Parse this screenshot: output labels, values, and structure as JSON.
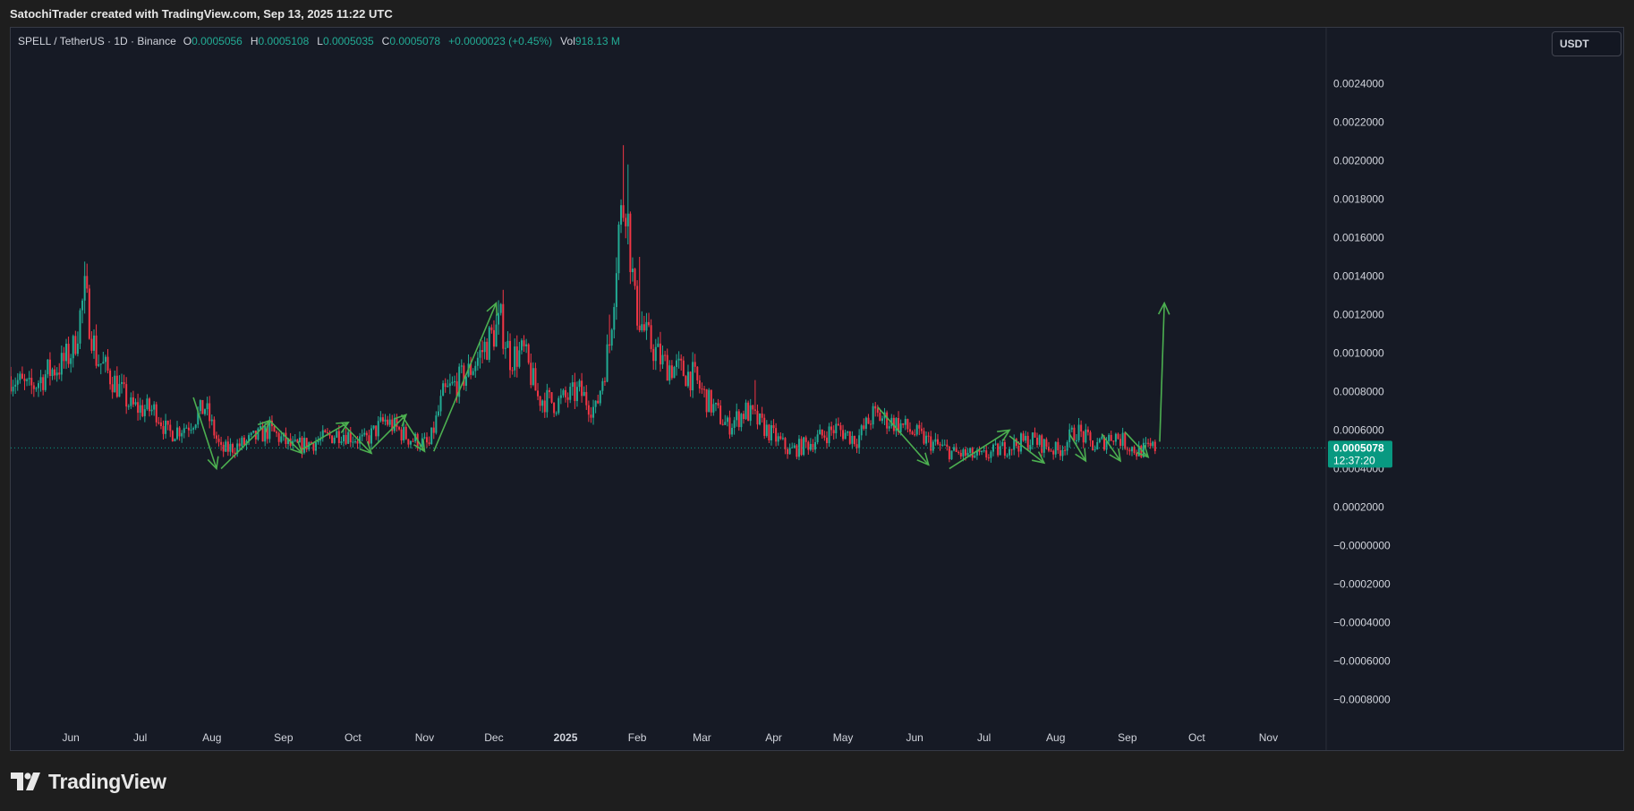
{
  "header": {
    "attribution": "SatochiTrader created with TradingView.com, Sep 13, 2025 11:22 UTC"
  },
  "legend": {
    "symbol": "SPELL / TetherUS · 1D · Binance",
    "open_label": "O",
    "open": "0.0005056",
    "high_label": "H",
    "high": "0.0005108",
    "low_label": "L",
    "low": "0.0005035",
    "close_label": "C",
    "close": "0.0005078",
    "change": "+0.0000023 (+0.45%)",
    "vol_label": "Vol",
    "vol": "918.13 M"
  },
  "price_scale": {
    "unit_button": "USDT",
    "current_price": "0.0005078",
    "countdown": "12:37:20"
  },
  "footer": {
    "brand": "TradingView"
  },
  "colors": {
    "up": "#22ab94",
    "down": "#f23645",
    "annotation": "#4caf50",
    "background": "#161a25",
    "label_bg": "#089981"
  },
  "chart_data": {
    "type": "candlestick",
    "interval": "1D",
    "y_axis": {
      "ticks": [
        "0.0024000",
        "0.0022000",
        "0.0020000",
        "0.0018000",
        "0.0016000",
        "0.0014000",
        "0.0012000",
        "0.0010000",
        "0.0008000",
        "0.0006000",
        "0.0004000",
        "0.0002000",
        "−0.0000000",
        "−0.0002000",
        "−0.0004000",
        "−0.0006000",
        "−0.0008000"
      ],
      "tick_values": [
        0.0024,
        0.0022,
        0.002,
        0.0018,
        0.0016,
        0.0014,
        0.0012,
        0.001,
        0.0008,
        0.0006,
        0.0004,
        0.0002,
        0,
        -0.0002,
        -0.0004,
        -0.0006,
        -0.0008
      ],
      "range": [
        -0.00089,
        0.00269
      ],
      "position": "right"
    },
    "x_axis": {
      "range": [
        "2024-05-06",
        "2025-11-26"
      ],
      "labels": [
        {
          "date": "2024-06-01",
          "text": "Jun"
        },
        {
          "date": "2024-07-01",
          "text": "Jul"
        },
        {
          "date": "2024-08-01",
          "text": "Aug"
        },
        {
          "date": "2024-09-01",
          "text": "Sep"
        },
        {
          "date": "2024-10-01",
          "text": "Oct"
        },
        {
          "date": "2024-11-01",
          "text": "Nov"
        },
        {
          "date": "2024-12-01",
          "text": "Dec"
        },
        {
          "date": "2025-01-01",
          "text": "2025",
          "bold": true
        },
        {
          "date": "2025-02-01",
          "text": "Feb"
        },
        {
          "date": "2025-03-01",
          "text": "Mar"
        },
        {
          "date": "2025-04-01",
          "text": "Apr"
        },
        {
          "date": "2025-05-01",
          "text": "May"
        },
        {
          "date": "2025-06-01",
          "text": "Jun"
        },
        {
          "date": "2025-07-01",
          "text": "Jul"
        },
        {
          "date": "2025-08-01",
          "text": "Aug"
        },
        {
          "date": "2025-09-01",
          "text": "Sep"
        },
        {
          "date": "2025-10-01",
          "text": "Oct"
        },
        {
          "date": "2025-11-01",
          "text": "Nov"
        }
      ]
    },
    "close_series": [
      [
        "2024-05-06",
        0.00088
      ],
      [
        "2024-05-14",
        0.00081
      ],
      [
        "2024-05-22",
        0.0009
      ],
      [
        "2024-05-28",
        0.00094
      ],
      [
        "2024-06-02",
        0.00102
      ],
      [
        "2024-06-07",
        0.00131
      ],
      [
        "2024-06-12",
        0.00098
      ],
      [
        "2024-06-20",
        0.00085
      ],
      [
        "2024-06-27",
        0.00072
      ],
      [
        "2024-07-08",
        0.0007
      ],
      [
        "2024-07-13",
        0.00058
      ],
      [
        "2024-07-22",
        0.00063
      ],
      [
        "2024-07-29",
        0.00072
      ],
      [
        "2024-08-05",
        0.00049
      ],
      [
        "2024-08-15",
        0.00053
      ],
      [
        "2024-08-26",
        0.0006
      ],
      [
        "2024-09-05",
        0.00051
      ],
      [
        "2024-09-15",
        0.00054
      ],
      [
        "2024-09-26",
        0.00059
      ],
      [
        "2024-10-06",
        0.00054
      ],
      [
        "2024-10-15",
        0.00065
      ],
      [
        "2024-10-25",
        0.00056
      ],
      [
        "2024-11-03",
        0.00052
      ],
      [
        "2024-11-09",
        0.00078
      ],
      [
        "2024-11-20",
        0.0009
      ],
      [
        "2024-11-28",
        0.00105
      ],
      [
        "2024-12-04",
        0.00116
      ],
      [
        "2024-12-08",
        0.00098
      ],
      [
        "2024-12-14",
        0.001
      ],
      [
        "2024-12-20",
        0.00077
      ],
      [
        "2024-12-28",
        0.00074
      ],
      [
        "2025-01-07",
        0.0008
      ],
      [
        "2025-01-14",
        0.0007
      ],
      [
        "2025-01-20",
        0.00105
      ],
      [
        "2025-01-24",
        0.00165
      ],
      [
        "2025-01-27",
        0.00182
      ],
      [
        "2025-01-31",
        0.00125
      ],
      [
        "2025-02-05",
        0.00108
      ],
      [
        "2025-02-12",
        0.00095
      ],
      [
        "2025-02-25",
        0.00088
      ],
      [
        "2025-03-03",
        0.00076
      ],
      [
        "2025-03-12",
        0.00062
      ],
      [
        "2025-03-20",
        0.0007
      ],
      [
        "2025-03-31",
        0.00058
      ],
      [
        "2025-04-08",
        0.00049
      ],
      [
        "2025-04-16",
        0.00053
      ],
      [
        "2025-04-28",
        0.00061
      ],
      [
        "2025-05-07",
        0.00055
      ],
      [
        "2025-05-14",
        0.00068
      ],
      [
        "2025-05-27",
        0.00062
      ],
      [
        "2025-06-07",
        0.00054
      ],
      [
        "2025-06-18",
        0.00048
      ],
      [
        "2025-06-30",
        0.00046
      ],
      [
        "2025-07-12",
        0.00052
      ],
      [
        "2025-07-22",
        0.00055
      ],
      [
        "2025-08-02",
        0.00049
      ],
      [
        "2025-08-10",
        0.0006
      ],
      [
        "2025-08-18",
        0.00051
      ],
      [
        "2025-08-26",
        0.00058
      ],
      [
        "2025-09-05",
        0.00049
      ],
      [
        "2025-09-13",
        0.00051
      ]
    ],
    "annotations": [
      {
        "type": "arrow",
        "from": [
          "2024-07-24",
          0.00077
        ],
        "to": [
          "2024-08-03",
          0.0004
        ]
      },
      {
        "type": "arrow",
        "from": [
          "2024-08-05",
          0.0004
        ],
        "to": [
          "2024-08-26",
          0.00065
        ]
      },
      {
        "type": "arrow",
        "from": [
          "2024-08-26",
          0.00065
        ],
        "to": [
          "2024-09-09",
          0.00048
        ]
      },
      {
        "type": "arrow",
        "from": [
          "2024-09-09",
          0.0005
        ],
        "to": [
          "2024-09-29",
          0.00064
        ]
      },
      {
        "type": "arrow",
        "from": [
          "2024-09-26",
          0.00064
        ],
        "to": [
          "2024-10-09",
          0.00048
        ]
      },
      {
        "type": "arrow",
        "from": [
          "2024-10-09",
          0.0005
        ],
        "to": [
          "2024-10-24",
          0.00068
        ]
      },
      {
        "type": "arrow",
        "from": [
          "2024-10-22",
          0.00068
        ],
        "to": [
          "2024-11-01",
          0.00049
        ]
      },
      {
        "type": "arrow",
        "from": [
          "2024-11-05",
          0.00049
        ],
        "to": [
          "2024-12-02",
          0.00126
        ]
      },
      {
        "type": "arrow",
        "from": [
          "2025-05-16",
          0.00072
        ],
        "to": [
          "2025-06-07",
          0.00042
        ]
      },
      {
        "type": "arrow",
        "from": [
          "2025-06-16",
          0.0004
        ],
        "to": [
          "2025-07-12",
          0.0006
        ]
      },
      {
        "type": "arrow",
        "from": [
          "2025-07-12",
          0.00057
        ],
        "to": [
          "2025-07-27",
          0.00043
        ]
      },
      {
        "type": "arrow",
        "from": [
          "2025-08-07",
          0.00058
        ],
        "to": [
          "2025-08-14",
          0.00044
        ]
      },
      {
        "type": "arrow",
        "from": [
          "2025-08-21",
          0.00058
        ],
        "to": [
          "2025-08-29",
          0.00044
        ]
      },
      {
        "type": "arrow",
        "from": [
          "2025-08-31",
          0.00059
        ],
        "to": [
          "2025-09-10",
          0.00046
        ]
      },
      {
        "type": "arrow",
        "from": [
          "2025-09-15",
          0.00054
        ],
        "to": [
          "2025-09-17",
          0.00126
        ]
      }
    ]
  }
}
